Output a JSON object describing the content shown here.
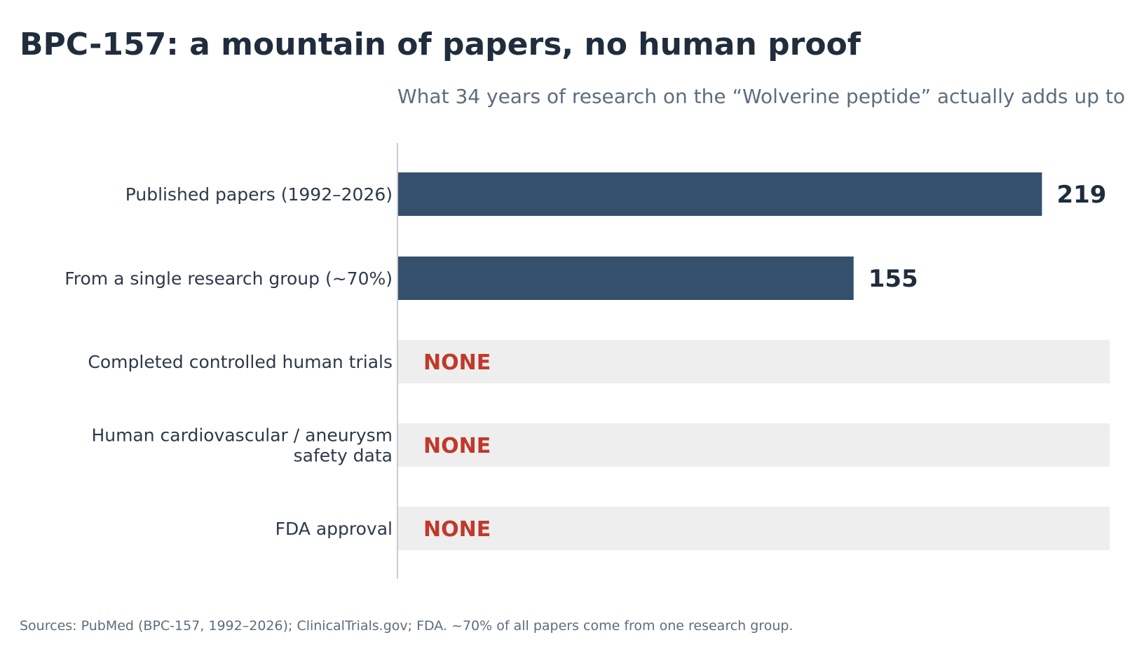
{
  "chart_data": {
    "type": "bar",
    "orientation": "horizontal",
    "title": "BPC-157: a mountain of papers, no human proof",
    "subtitle": "What 34 years of research on the “Wolverine peptide” actually adds up to",
    "categories": [
      [
        "Published papers (1992–2026)"
      ],
      [
        "From a single research group (~70%)"
      ],
      [
        "Completed controlled human trials"
      ],
      [
        "Human cardiovascular / aneurysm",
        "safety data"
      ],
      [
        "FDA approval"
      ]
    ],
    "values": [
      219,
      155,
      0,
      0,
      0
    ],
    "value_labels": [
      "219",
      "155",
      "NONE",
      "NONE",
      "NONE"
    ],
    "xlim": [
      0,
      242
    ],
    "grid": false,
    "legend": "none",
    "colors": {
      "bar": "#34506d",
      "none_band": "#eeeeee",
      "none_text": "#c0392b",
      "axis": "#cccccc"
    },
    "source": "Sources: PubMed (BPC-157, 1992–2026); ClinicalTrials.gov; FDA.  ~70% of all papers come from one research group."
  }
}
